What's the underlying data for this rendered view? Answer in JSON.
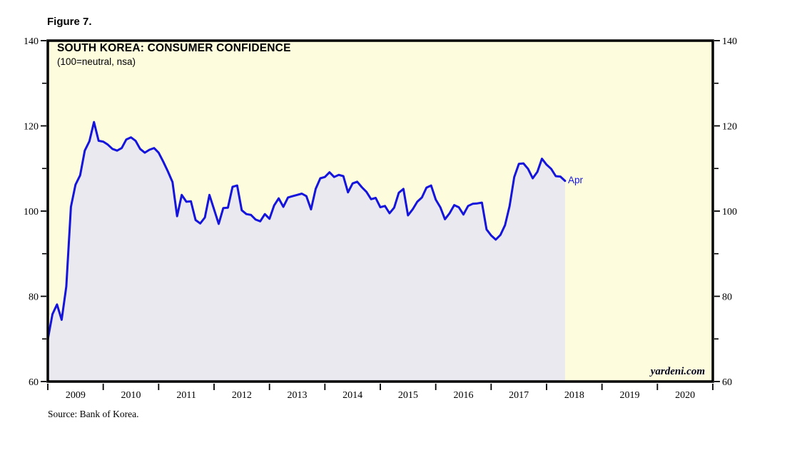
{
  "figure": {
    "label": "Figure 7."
  },
  "chart": {
    "title": "SOUTH KOREA: CONSUMER CONFIDENCE",
    "subtitle": "(100=neutral, nsa)",
    "watermark": "yardeni.com",
    "source": "Source: Bank of Korea."
  },
  "chart_data": {
    "type": "area",
    "title": "SOUTH KOREA: CONSUMER CONFIDENCE",
    "subtitle": "(100=neutral, nsa)",
    "end_point_label": "Apr",
    "grid": false,
    "x_axis": {
      "year_labels": [
        "2009",
        "2010",
        "2011",
        "2012",
        "2013",
        "2014",
        "2015",
        "2016",
        "2017",
        "2018",
        "2019",
        "2020"
      ],
      "tick_style": "year-boundaries-below-axis"
    },
    "y_axis": {
      "range": [
        60,
        140
      ],
      "major_ticks": [
        60,
        80,
        100,
        120,
        140
      ],
      "minor_ticks": [
        70,
        90,
        110,
        130
      ],
      "sides": "both"
    },
    "series": [
      {
        "name": "Consumer Confidence Index",
        "frequency": "monthly",
        "start": "2008-12",
        "end": "2018-04",
        "values": [
          69.9,
          75.8,
          78.1,
          74.5,
          82.3,
          101.0,
          106.2,
          108.4,
          114.2,
          116.4,
          120.9,
          116.5,
          116.3,
          115.6,
          114.6,
          114.2,
          114.8,
          116.8,
          117.3,
          116.5,
          114.6,
          113.7,
          114.4,
          114.8,
          113.7,
          111.6,
          109.3,
          106.8,
          98.8,
          103.8,
          102.2,
          102.3,
          97.9,
          97.1,
          98.5,
          103.8,
          100.4,
          97.0,
          100.7,
          100.8,
          105.7,
          106.0,
          100.2,
          99.3,
          99.1,
          98.0,
          97.6,
          99.3,
          98.2,
          101.3,
          103.0,
          101.0,
          103.2,
          103.5,
          103.8,
          104.1,
          103.5,
          100.4,
          105.2,
          107.7,
          108.0,
          109.1,
          108.0,
          108.5,
          108.2,
          104.4,
          106.5,
          106.9,
          105.6,
          104.5,
          102.8,
          103.1,
          100.9,
          101.2,
          99.5,
          100.8,
          104.3,
          105.2,
          99.0,
          100.4,
          102.2,
          103.2,
          105.5,
          106.0,
          102.7,
          100.9,
          98.1,
          99.5,
          101.4,
          100.9,
          99.2,
          101.2,
          101.7,
          101.8,
          102.0,
          95.7,
          94.3,
          93.3,
          94.4,
          96.7,
          101.2,
          108.0,
          111.1,
          111.2,
          109.9,
          107.7,
          109.2,
          112.3,
          110.9,
          109.9,
          108.2,
          108.1,
          107.1
        ]
      }
    ],
    "colors": {
      "line": "#1414dc",
      "area_fill": "#e9e9ef",
      "background": "#fdfcdc",
      "frame": "#000000",
      "label": "#000000",
      "watermark": "#00001f"
    }
  }
}
